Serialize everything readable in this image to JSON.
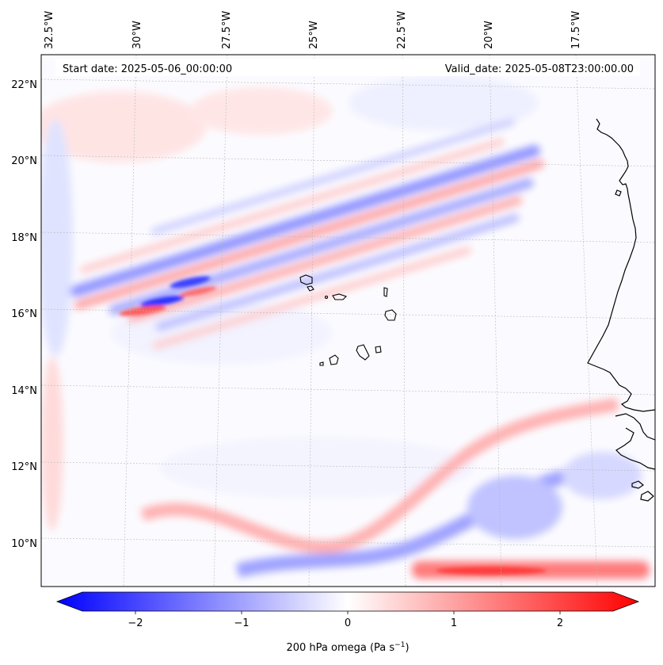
{
  "map": {
    "header_start": "Start date: 2025-05-06_00:00:00",
    "header_valid": "Valid_date: 2025-05-08T23:00:00.00",
    "lon_labels": [
      "32.5°W",
      "30°W",
      "27.5°W",
      "25°W",
      "22.5°W",
      "20°W",
      "17.5°W"
    ],
    "lat_labels": [
      "22°N",
      "20°N",
      "18°N",
      "16°N",
      "14°N",
      "12°N",
      "10°N"
    ],
    "field": "200 hPa omega",
    "colors": {
      "negative": "#0000ff",
      "zero": "#ffffff",
      "positive": "#ff0000",
      "coast": "#000000"
    }
  },
  "colorbar": {
    "ticks": [
      "−2",
      "−1",
      "0",
      "1",
      "2"
    ],
    "label": "200 hPa omega (Pa s",
    "label_exp": "−1",
    "label_close": ")",
    "range": [
      -2.7,
      2.7
    ],
    "extend": "both"
  }
}
